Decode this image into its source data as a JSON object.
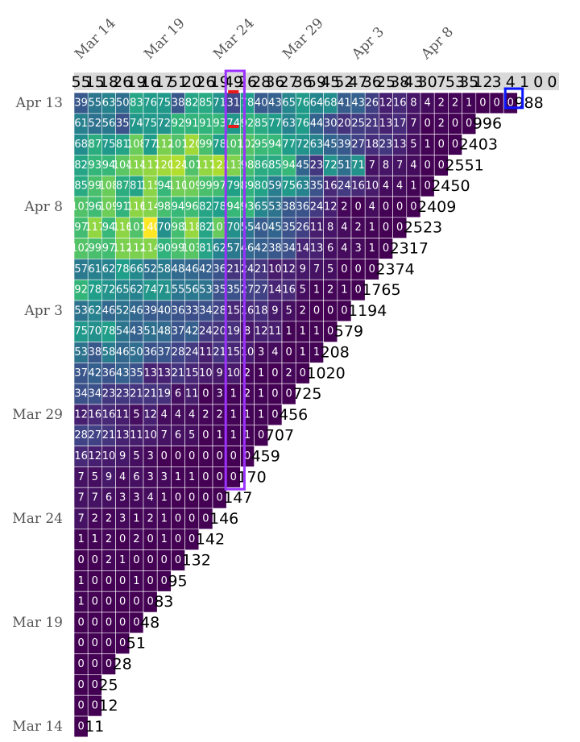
{
  "chart_data": {
    "type": "heatmap",
    "title": "",
    "x_tick_labels": [
      "Mar 14",
      "Mar 19",
      "Mar 24",
      "Mar 29",
      "Apr  3",
      "Apr  8"
    ],
    "y_tick_labels": [
      "Apr 13",
      "Apr  8",
      "Apr  3",
      "Mar 29",
      "Mar 24",
      "Mar 19",
      "Mar 14"
    ],
    "column_totals": [
      55,
      15,
      18,
      26,
      19,
      16,
      17,
      51,
      20,
      26,
      19,
      49,
      26,
      28,
      36,
      27,
      36,
      59,
      45,
      52,
      47,
      36,
      25,
      38,
      43,
      30,
      7,
      53,
      35,
      12,
      3,
      4,
      1,
      0,
      0
    ],
    "row_totals": [
      988,
      996,
      2403,
      2551,
      2450,
      2409,
      2523,
      2317,
      2374,
      1765,
      1194,
      579,
      208,
      1020,
      725,
      456,
      707,
      459,
      170,
      147,
      146,
      142,
      132,
      95,
      83,
      48,
      51,
      28,
      25,
      12,
      11
    ],
    "rows": [
      [
        39,
        55,
        63,
        50,
        83,
        76,
        75,
        38,
        82,
        85,
        71,
        31,
        78,
        40,
        43,
        65,
        76,
        64,
        68,
        41,
        43,
        26,
        12,
        16,
        8,
        4,
        2,
        2,
        1,
        0,
        0,
        0
      ],
      [
        61,
        52,
        56,
        35,
        74,
        75,
        72,
        92,
        91,
        91,
        93,
        74,
        92,
        85,
        77,
        63,
        76,
        44,
        30,
        20,
        25,
        21,
        13,
        17,
        7,
        0,
        2,
        0,
        0
      ],
      [
        68,
        87,
        75,
        81,
        108,
        77,
        112,
        101,
        120,
        99,
        78,
        101,
        102,
        95,
        94,
        77,
        72,
        63,
        45,
        39,
        27,
        18,
        23,
        13,
        5,
        1,
        0,
        0
      ],
      [
        82,
        93,
        94,
        104,
        114,
        117,
        120,
        124,
        101,
        117,
        123,
        113,
        98,
        86,
        85,
        94,
        45,
        23,
        72,
        51,
        71,
        7,
        8,
        7,
        4,
        0,
        0
      ],
      [
        85,
        99,
        108,
        87,
        81,
        115,
        94,
        110,
        109,
        99,
        97,
        79,
        89,
        80,
        59,
        75,
        63,
        35,
        16,
        24,
        16,
        10,
        4,
        4,
        1,
        0
      ],
      [
        101,
        96,
        109,
        91,
        116,
        114,
        98,
        94,
        96,
        82,
        78,
        94,
        93,
        65,
        53,
        38,
        36,
        24,
        12,
        2,
        0,
        4,
        0,
        0,
        0
      ],
      [
        97,
        117,
        94,
        116,
        101,
        140,
        70,
        98,
        118,
        82,
        107,
        70,
        55,
        40,
        45,
        35,
        26,
        11,
        8,
        4,
        2,
        1,
        0,
        0
      ],
      [
        102,
        99,
        97,
        112,
        112,
        114,
        90,
        99,
        103,
        81,
        62,
        57,
        46,
        42,
        38,
        34,
        14,
        13,
        6,
        4,
        3,
        1,
        0
      ],
      [
        57,
        61,
        62,
        78,
        66,
        52,
        58,
        48,
        46,
        42,
        36,
        21,
        24,
        21,
        10,
        12,
        9,
        7,
        5,
        0,
        0,
        0
      ],
      [
        92,
        78,
        72,
        65,
        62,
        74,
        71,
        55,
        56,
        53,
        35,
        35,
        27,
        27,
        14,
        16,
        5,
        1,
        2,
        1,
        0
      ],
      [
        53,
        62,
        46,
        52,
        46,
        39,
        40,
        36,
        33,
        34,
        28,
        15,
        16,
        18,
        9,
        5,
        2,
        0,
        0,
        0
      ],
      [
        75,
        70,
        78,
        54,
        43,
        51,
        48,
        37,
        42,
        24,
        20,
        19,
        8,
        12,
        11,
        1,
        1,
        1,
        0
      ],
      [
        53,
        38,
        58,
        46,
        50,
        36,
        37,
        28,
        24,
        11,
        21,
        15,
        10,
        3,
        4,
        0,
        1,
        1
      ],
      [
        37,
        42,
        36,
        43,
        35,
        13,
        13,
        21,
        15,
        10,
        9,
        10,
        2,
        1,
        0,
        2,
        0
      ],
      [
        34,
        34,
        23,
        23,
        21,
        21,
        19,
        6,
        11,
        0,
        3,
        1,
        2,
        1,
        0,
        0
      ],
      [
        12,
        16,
        16,
        11,
        5,
        12,
        4,
        4,
        4,
        2,
        2,
        1,
        1,
        1,
        0
      ],
      [
        28,
        27,
        21,
        13,
        11,
        10,
        7,
        6,
        5,
        0,
        1,
        1,
        1,
        0
      ],
      [
        16,
        12,
        10,
        9,
        5,
        3,
        0,
        0,
        0,
        0,
        0,
        0,
        0
      ],
      [
        7,
        5,
        9,
        4,
        6,
        3,
        3,
        1,
        1,
        0,
        0,
        0
      ],
      [
        7,
        7,
        6,
        3,
        3,
        4,
        1,
        0,
        0,
        0,
        0
      ],
      [
        7,
        2,
        2,
        3,
        1,
        2,
        1,
        0,
        0,
        0
      ],
      [
        1,
        1,
        2,
        0,
        2,
        0,
        1,
        0,
        0
      ],
      [
        0,
        0,
        2,
        1,
        0,
        0,
        0,
        0
      ],
      [
        1,
        0,
        0,
        0,
        1,
        0,
        0
      ],
      [
        1,
        0,
        0,
        0,
        0,
        0
      ],
      [
        0,
        0,
        0,
        0,
        0
      ],
      [
        0,
        0,
        0,
        0
      ],
      [
        0,
        0,
        0
      ],
      [
        0,
        0
      ],
      [
        0,
        0
      ],
      [
        0
      ]
    ],
    "color_scale": "viridis",
    "value_range": [
      0,
      140
    ],
    "grid": true,
    "highlighted_column_index": 11,
    "highlighted_cell": {
      "row": 0,
      "col": 31
    },
    "highlight_colors": {
      "column_box": "#9b30ff",
      "cell_box": "#0a14ff",
      "marker": "#e8191a"
    }
  }
}
